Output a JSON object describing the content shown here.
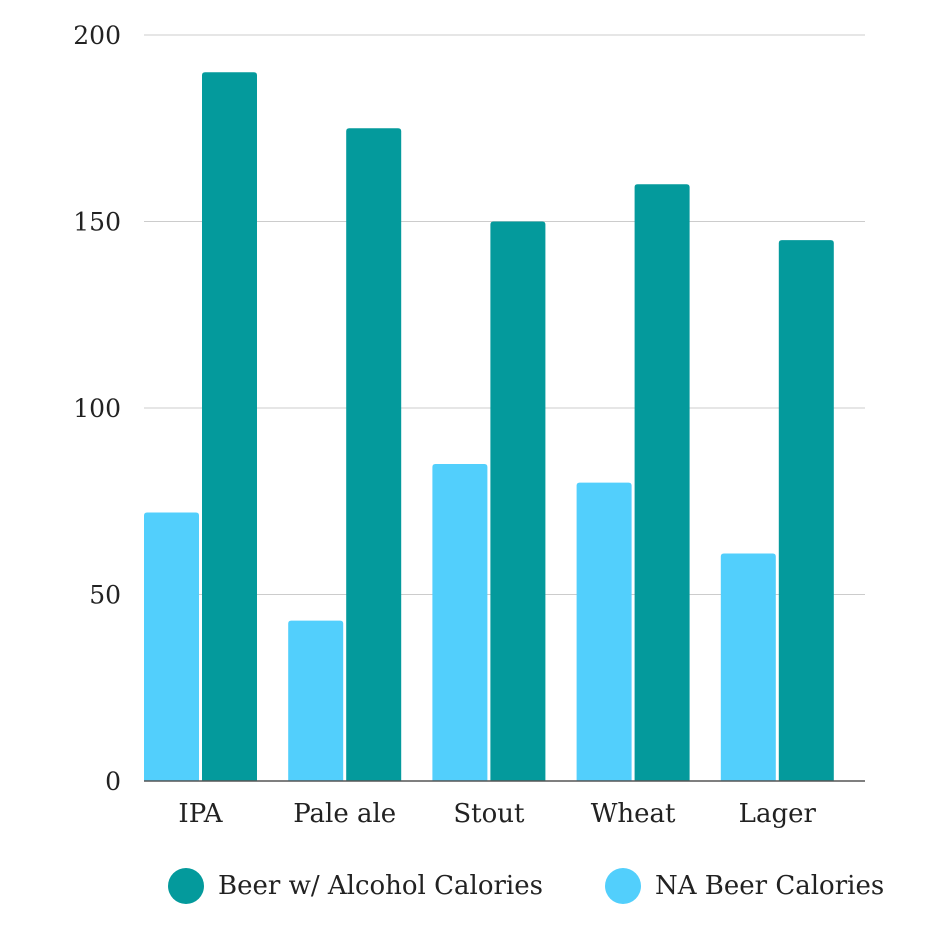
{
  "colors": {
    "alcohol": "#049a9c",
    "na": "#52cffc",
    "grid": "#cccccc",
    "axis": "#555555",
    "text": "#222222"
  },
  "chart_data": {
    "type": "bar",
    "title": "",
    "xlabel": "",
    "ylabel": "",
    "categories": [
      "IPA",
      "Pale ale",
      "Stout",
      "Wheat",
      "Lager"
    ],
    "series": [
      {
        "name": "NA Beer Calories",
        "values": [
          72,
          43,
          85,
          80,
          61
        ]
      },
      {
        "name": "Beer w/ Alcohol Calories",
        "values": [
          190,
          175,
          150,
          160,
          145
        ]
      }
    ],
    "ylim": [
      0,
      200
    ],
    "yticks": [
      0,
      50,
      100,
      150,
      200
    ],
    "grid": true,
    "legend_position": "bottom"
  },
  "legend": {
    "items": [
      {
        "label": "Beer w/ Alcohol Calories",
        "color_key": "alcohol"
      },
      {
        "label": "NA Beer Calories",
        "color_key": "na"
      }
    ]
  }
}
